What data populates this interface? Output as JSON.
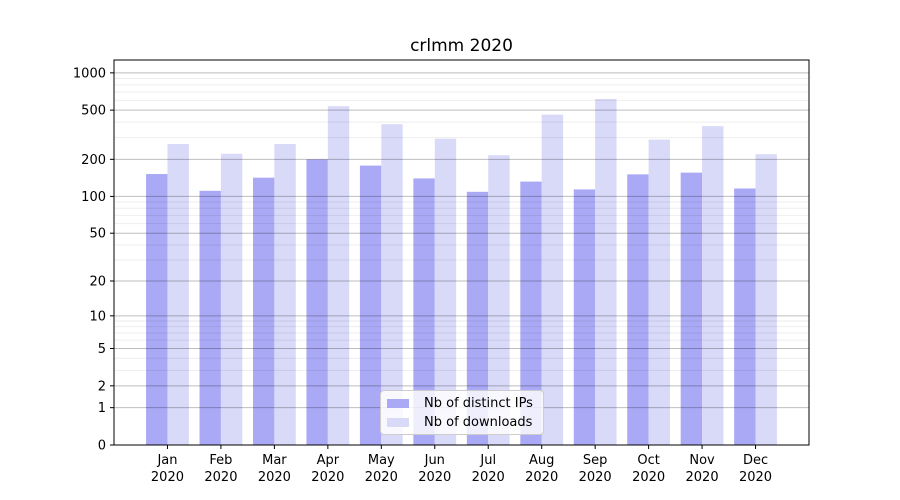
{
  "title": "crlmm 2020",
  "colors": {
    "distinct_ips": "#a9a9f5",
    "downloads": "#d9d9f8",
    "axis_spine": "#000000",
    "major_grid": "rgba(0,0,0,0.26)",
    "minor_grid": "rgba(0,0,0,0.07)",
    "tick_text": "#000000",
    "legend_border": "#cccccc"
  },
  "chart_data": {
    "type": "bar",
    "title": "crlmm 2020",
    "x_categories": [
      "Jan 2020",
      "Feb 2020",
      "Mar 2020",
      "Apr 2020",
      "May 2020",
      "Jun 2020",
      "Jul 2020",
      "Aug 2020",
      "Sep 2020",
      "Oct 2020",
      "Nov 2020",
      "Dec 2020"
    ],
    "x_months": [
      "Jan",
      "Feb",
      "Mar",
      "Apr",
      "May",
      "Jun",
      "Jul",
      "Aug",
      "Sep",
      "Oct",
      "Nov",
      "Dec"
    ],
    "x_year_label": "2020",
    "series": [
      {
        "name": "Nb of distinct IPs",
        "color": "#a9a9f5",
        "values": [
          152,
          111,
          142,
          200,
          178,
          140,
          109,
          132,
          114,
          151,
          156,
          116
        ]
      },
      {
        "name": "Nb of downloads",
        "color": "#d9d9f8",
        "values": [
          266,
          222,
          266,
          538,
          385,
          294,
          216,
          460,
          615,
          289,
          371,
          220
        ]
      }
    ],
    "y_scale": "log10(value+1)",
    "ylim": [
      0,
      1270
    ],
    "y_ticks": [
      0,
      1,
      2,
      5,
      10,
      20,
      50,
      100,
      200,
      500,
      1000
    ],
    "y_tick_labels": [
      "0",
      "1",
      "2",
      "5",
      "10",
      "20",
      "50",
      "100",
      "200",
      "500",
      "1000"
    ],
    "minor_grid_values": [
      3,
      4,
      6,
      7,
      8,
      9,
      30,
      40,
      60,
      70,
      80,
      90,
      300,
      400,
      600,
      700,
      800,
      900
    ],
    "grid": true,
    "legend_position": "inside-bottom-center",
    "bar_group": "side-by-side, IPs left of month center, downloads right"
  }
}
